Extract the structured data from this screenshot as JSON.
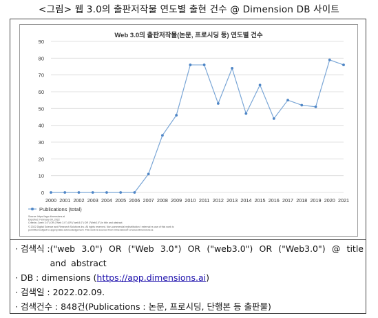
{
  "caption": "<그림> 웹 3.0의 출판저작물 연도별 출현 건수 @ Dimension DB 사이트",
  "chart_data": {
    "type": "line",
    "title": "Web 3.0의 출판저작물(논문, 프로시딩 등) 연도별 건수",
    "categories": [
      "2000",
      "2001",
      "2002",
      "2003",
      "2004",
      "2005",
      "2006",
      "2007",
      "2008",
      "2009",
      "2010",
      "2011",
      "2012",
      "2013",
      "2014",
      "2015",
      "2016",
      "2017",
      "2018",
      "2019",
      "2020",
      "2021"
    ],
    "series": [
      {
        "name": "Publications (total)",
        "values": [
          0,
          0,
          0,
          0,
          0,
          0,
          0,
          11,
          34,
          46,
          76,
          76,
          53,
          74,
          47,
          64,
          44,
          55,
          52,
          51,
          79,
          76
        ],
        "color": "#7aa6d6"
      }
    ],
    "yticks": [
      "0",
      "10",
      "20",
      "30",
      "40",
      "50",
      "60",
      "70",
      "80",
      "90"
    ],
    "ylim": [
      0,
      90
    ],
    "grid": true,
    "legend": "bottom-left",
    "source_note": {
      "line1": "Source: https://app.dimensions.ai",
      "line2": "Exported: February 09, 2022",
      "line3": "Criteria: (\"web 3.0\") OR (\"Web 3.0\") OR (\"web3.0\") OR (\"Web3.0\") in title and abstract.",
      "line4": "© 2022 Digital Science and Research Solutions Inc. All rights reserved. Non-commercial redistribution / external re-use of this work is",
      "line5": "permitted subject to appropriate acknowledgement. This work is sourced from Dimensions® at www.dimensions.ai."
    }
  },
  "info": {
    "query_label": "· 검색식 : ",
    "query_value": "(\"web 3.0\") OR (\"Web 3.0\") OR (\"web3.0\") OR (\"Web3.0\") @ title and abstract",
    "db_label": "· DB : dimensions (",
    "db_link": "https://app.dimensions.ai",
    "db_close": ")",
    "date_text": "· 검색일 : 2022.02.09.",
    "count_text": "· 검색건수 : 848건(Publications : 논문, 프로시딩, 단행본 등 출판물)"
  }
}
